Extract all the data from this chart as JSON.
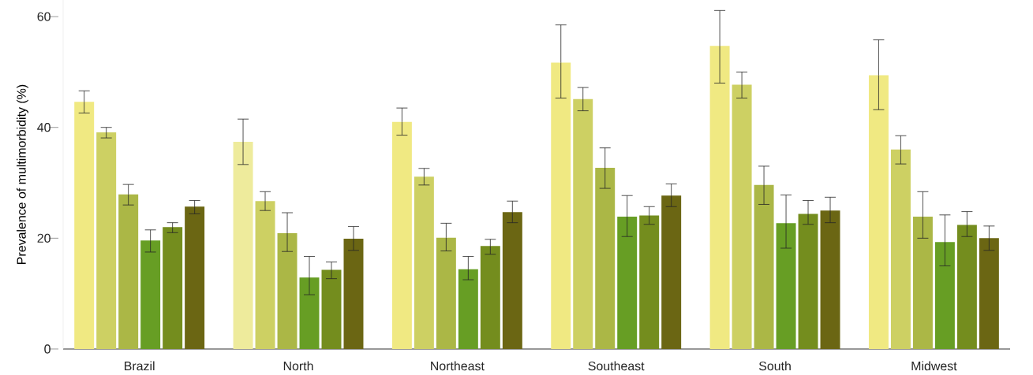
{
  "chart_data": {
    "type": "bar",
    "ylabel": "Prevalence of multimorbidity (%)",
    "categories": [
      "Brazil",
      "North",
      "Northeast",
      "Southeast",
      "South",
      "Midwest"
    ],
    "ylim": [
      0,
      63
    ],
    "yticks": [
      0,
      20,
      40,
      60
    ],
    "grid": false,
    "series": [
      {
        "colors": [
          "#f0e982",
          "#eeeb9c",
          "#f0e982",
          "#f0e982",
          "#f0e982",
          "#f0e982"
        ],
        "values": [
          44.6,
          37.4,
          41.0,
          51.7,
          54.7,
          49.4
        ],
        "errors": [
          [
            42.6,
            46.6
          ],
          [
            33.3,
            41.5
          ],
          [
            38.6,
            43.5
          ],
          [
            45.3,
            58.5
          ],
          [
            48.0,
            61.1
          ],
          [
            43.2,
            55.8
          ]
        ]
      },
      {
        "color": "#cdd063",
        "values": [
          39.1,
          26.7,
          31.1,
          45.1,
          47.7,
          36.0
        ],
        "errors": [
          [
            38.1,
            40.0
          ],
          [
            25.0,
            28.4
          ],
          [
            29.6,
            32.6
          ],
          [
            43.0,
            47.2
          ],
          [
            45.3,
            50.0
          ],
          [
            33.4,
            38.5
          ]
        ]
      },
      {
        "color": "#abb746",
        "values": [
          27.9,
          20.9,
          20.1,
          32.7,
          29.6,
          23.9
        ],
        "errors": [
          [
            26.0,
            29.7
          ],
          [
            17.6,
            24.6
          ],
          [
            17.7,
            22.7
          ],
          [
            29.0,
            36.3
          ],
          [
            26.1,
            33.0
          ],
          [
            20.0,
            28.4
          ]
        ]
      },
      {
        "color": "#679e24",
        "values": [
          19.6,
          12.9,
          14.4,
          23.9,
          22.7,
          19.3
        ],
        "errors": [
          [
            17.5,
            21.5
          ],
          [
            9.8,
            16.7
          ],
          [
            12.5,
            16.7
          ],
          [
            20.3,
            27.7
          ],
          [
            18.2,
            27.8
          ],
          [
            15.0,
            24.2
          ]
        ]
      },
      {
        "color": "#748d1e",
        "values": [
          22.0,
          14.3,
          18.6,
          24.1,
          24.4,
          22.4
        ],
        "errors": [
          [
            21.0,
            22.8
          ],
          [
            12.7,
            15.7
          ],
          [
            17.1,
            19.8
          ],
          [
            22.5,
            25.7
          ],
          [
            22.5,
            26.8
          ],
          [
            20.3,
            24.8
          ]
        ]
      },
      {
        "color": "#6b6613",
        "values": [
          25.7,
          19.9,
          24.7,
          27.7,
          25.0,
          20.0
        ],
        "errors": [
          [
            24.4,
            26.8
          ],
          [
            17.8,
            22.1
          ],
          [
            22.8,
            26.7
          ],
          [
            25.7,
            29.8
          ],
          [
            22.8,
            27.4
          ],
          [
            17.8,
            22.2
          ]
        ]
      }
    ]
  }
}
